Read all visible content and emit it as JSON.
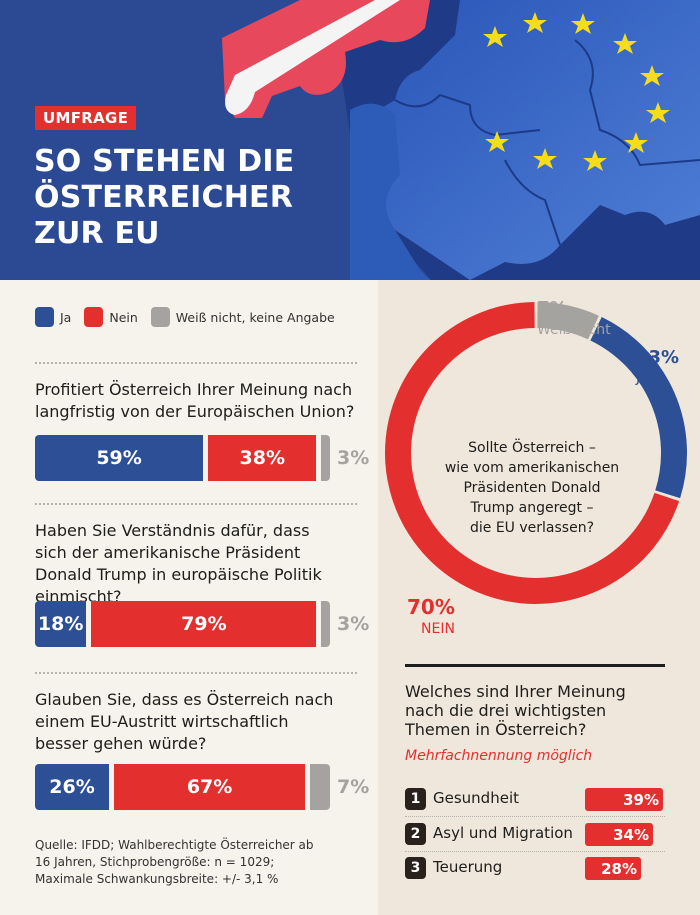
{
  "header": {
    "badge": "UMFRAGE",
    "title_lines": [
      "SO STEHEN DIE",
      "ÖSTERREICHER",
      "ZUR EU"
    ]
  },
  "colors": {
    "ja": "#2d4f95",
    "nein": "#e3302f",
    "weiss_nicht": "#a5a3a0",
    "header_bg": "#2c4a93"
  },
  "legend": [
    {
      "label": "Ja",
      "color": "#2d4f95"
    },
    {
      "label": "Nein",
      "color": "#e3302f"
    },
    {
      "label": "Weiß nicht, keine Angabe",
      "color": "#a5a3a0"
    }
  ],
  "chart_data": [
    {
      "type": "bar",
      "orientation": "horizontal-stacked",
      "title": "Profitiert Österreich Ihrer Meinung nach langfristig von der Europäischen Union?",
      "categories": [
        "Ja",
        "Nein",
        "Weiß nicht, keine Angabe"
      ],
      "values": [
        59,
        38,
        3
      ],
      "labels": [
        "59%",
        "38%",
        "3%"
      ]
    },
    {
      "type": "bar",
      "orientation": "horizontal-stacked",
      "title": "Haben Sie Verständnis dafür, dass sich der amerikanische Präsident Donald Trump in europäische Politik einmischt?",
      "categories": [
        "Ja",
        "Nein",
        "Weiß nicht, keine Angabe"
      ],
      "values": [
        18,
        79,
        3
      ],
      "labels": [
        "18%",
        "79%",
        "3%"
      ]
    },
    {
      "type": "bar",
      "orientation": "horizontal-stacked",
      "title": "Glauben Sie, dass es Österreich nach einem EU-Austritt wirtschaftlich besser gehen würde?",
      "categories": [
        "Ja",
        "Nein",
        "Weiß nicht, keine Angabe"
      ],
      "values": [
        26,
        67,
        7
      ],
      "labels": [
        "26%",
        "67%",
        "7%"
      ]
    },
    {
      "type": "pie",
      "variant": "donut",
      "title": "Sollte Österreich – wie vom amerikanischen Präsidenten Donald Trump angeregt – die EU verlassen?",
      "center_lines": [
        "Sollte Österreich –",
        "wie vom amerikanischen",
        "Präsidenten Donald",
        "Trump angeregt –",
        "die EU verlassen?"
      ],
      "slices": [
        {
          "name": "JA",
          "value": 23,
          "label": "23%",
          "color": "#2d4f95"
        },
        {
          "name": "NEIN",
          "value": 70,
          "label": "70%",
          "color": "#e3302f"
        },
        {
          "name": "Weiß nicht",
          "value": 7,
          "label": "7%",
          "color": "#a5a3a0"
        }
      ]
    },
    {
      "type": "bar",
      "orientation": "horizontal",
      "title": "Welches sind Ihrer Meinung nach die drei wichtigsten Themen in Österreich?",
      "title_lines": [
        "Welches sind Ihrer Meinung",
        "nach die drei wichtigsten",
        "Themen in Österreich?"
      ],
      "subtitle": "Mehrfachnennung möglich",
      "items": [
        {
          "rank": "1",
          "label": "Gesundheit",
          "value": 39,
          "text": "39%"
        },
        {
          "rank": "2",
          "label": "Asyl und Migration",
          "value": 34,
          "text": "34%"
        },
        {
          "rank": "3",
          "label": "Teuerung",
          "value": 28,
          "text": "28%"
        }
      ]
    }
  ],
  "source_lines": [
    "Quelle: IFDD; Wahlberechtigte Österreicher ab",
    "16 Jahren, Stichprobengröße: n = 1029;",
    "Maximale Schwankungsbreite:  +/- 3,1 %"
  ]
}
